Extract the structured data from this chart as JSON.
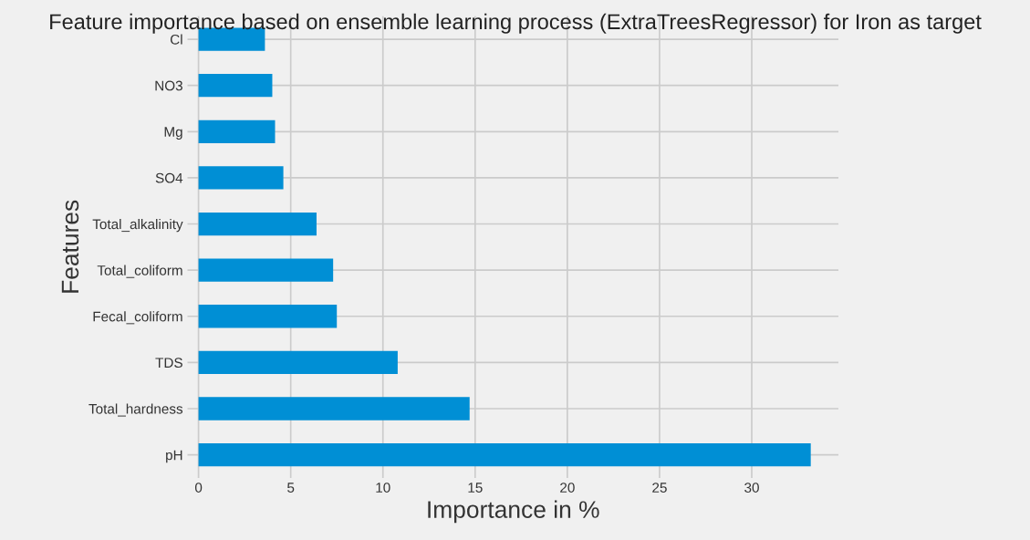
{
  "chart_data": {
    "type": "bar",
    "orientation": "horizontal",
    "title": "Feature importance based on ensemble learning process (ExtraTreesRegressor) for Iron as target",
    "xlabel": "Importance in %",
    "ylabel": "Features",
    "categories": [
      "Cl",
      "NO3",
      "Mg",
      "SO4",
      "Total_alkalinity",
      "Total_coliform",
      "Fecal_coliform",
      "TDS",
      "Total_hardness",
      "pH"
    ],
    "values": [
      3.6,
      4.0,
      4.15,
      4.6,
      6.4,
      7.3,
      7.5,
      10.8,
      14.7,
      33.2
    ],
    "color": "#008fd5",
    "xlim": [
      -0.6,
      34.7
    ],
    "xticks": [
      0,
      5,
      10,
      15,
      20,
      25,
      30
    ],
    "grid": true
  }
}
